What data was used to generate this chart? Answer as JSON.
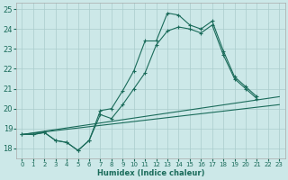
{
  "xlabel": "Humidex (Indice chaleur)",
  "xlim": [
    -0.5,
    23.5
  ],
  "ylim": [
    17.5,
    25.3
  ],
  "yticks": [
    18,
    19,
    20,
    21,
    22,
    23,
    24,
    25
  ],
  "xticks": [
    0,
    1,
    2,
    3,
    4,
    5,
    6,
    7,
    8,
    9,
    10,
    11,
    12,
    13,
    14,
    15,
    16,
    17,
    18,
    19,
    20,
    21,
    22,
    23
  ],
  "bg_color": "#cce8e8",
  "grid_color": "#aacccc",
  "line_color": "#1a6b5a",
  "line1_x": [
    0,
    1,
    2,
    3,
    4,
    5,
    6,
    7,
    8,
    9,
    10,
    11,
    12,
    13,
    14,
    15,
    16,
    17,
    18,
    19,
    20,
    21
  ],
  "line1_y": [
    18.7,
    18.7,
    18.8,
    18.4,
    18.3,
    17.9,
    18.4,
    19.9,
    20.0,
    20.9,
    21.9,
    23.4,
    23.4,
    24.8,
    24.7,
    24.2,
    24.0,
    24.4,
    22.9,
    21.6,
    21.1,
    20.6
  ],
  "line2_x": [
    0,
    1,
    2,
    3,
    4,
    5,
    6,
    7,
    8,
    9,
    10,
    11,
    12,
    13,
    14,
    15,
    16,
    17,
    18,
    19,
    20,
    21
  ],
  "line2_y": [
    18.7,
    18.7,
    18.8,
    18.4,
    18.3,
    17.9,
    18.4,
    19.7,
    19.5,
    20.2,
    21.0,
    21.8,
    23.2,
    23.9,
    24.1,
    24.0,
    23.8,
    24.2,
    22.7,
    21.5,
    21.0,
    20.5
  ],
  "line3_x": [
    0,
    23
  ],
  "line3_y": [
    18.7,
    20.6
  ],
  "line4_x": [
    0,
    23
  ],
  "line4_y": [
    18.7,
    20.2
  ]
}
